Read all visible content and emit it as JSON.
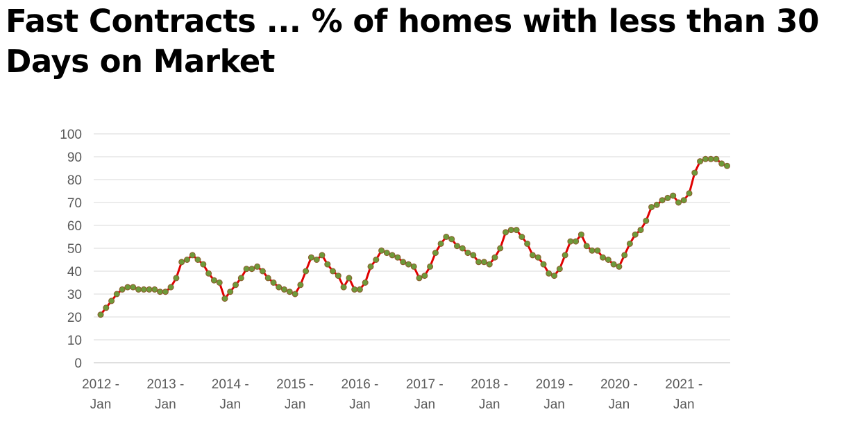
{
  "title": "Fast Contracts ... % of homes with less than 30 Days on Market",
  "chart_data": {
    "type": "line",
    "title": "Fast Contracts ... % of homes with less than 30 Days on Market",
    "xlabel": "",
    "ylabel": "",
    "ylim": [
      0,
      100
    ],
    "yticks": [
      0,
      10,
      20,
      30,
      40,
      50,
      60,
      70,
      80,
      90,
      100
    ],
    "grid": true,
    "legend": "none",
    "line_color": "#e00000",
    "marker_color": "#6e9a3a",
    "marker_edge": "#8b5a2b",
    "x_tick_labels": [
      {
        "line1": "2012 -",
        "line2": "Jan"
      },
      {
        "line1": "2013 -",
        "line2": "Jan"
      },
      {
        "line1": "2014 -",
        "line2": "Jan"
      },
      {
        "line1": "2015 -",
        "line2": "Jan"
      },
      {
        "line1": "2016 -",
        "line2": "Jan"
      },
      {
        "line1": "2017 -",
        "line2": "Jan"
      },
      {
        "line1": "2018 -",
        "line2": "Jan"
      },
      {
        "line1": "2019 -",
        "line2": "Jan"
      },
      {
        "line1": "2020 -",
        "line2": "Jan"
      },
      {
        "line1": "2021 -",
        "line2": "Jan"
      }
    ],
    "series": [
      {
        "values": [
          21,
          24,
          27,
          30,
          32,
          33,
          33,
          32,
          32,
          32,
          32,
          31,
          31,
          33,
          37,
          44,
          45,
          47,
          45,
          43,
          39,
          36,
          35,
          28,
          31,
          34,
          37,
          41,
          41,
          42,
          40,
          37,
          35,
          33,
          32,
          31,
          30,
          34,
          40,
          46,
          45,
          47,
          43,
          40,
          38,
          33,
          37,
          32,
          32,
          35,
          42,
          45,
          49,
          48,
          47,
          46,
          44,
          43,
          42,
          37,
          38,
          42,
          48,
          52,
          55,
          54,
          51,
          50,
          48,
          47,
          44,
          44,
          43,
          46,
          50,
          57,
          58,
          58,
          55,
          52,
          47,
          46,
          43,
          39,
          38,
          41,
          47,
          53,
          53,
          56,
          51,
          49,
          49,
          46,
          45,
          43,
          42,
          47,
          52,
          56,
          58,
          62,
          68,
          69,
          71,
          72,
          73,
          70,
          71,
          74,
          83,
          88,
          89,
          89,
          89,
          87,
          86
        ]
      }
    ]
  }
}
